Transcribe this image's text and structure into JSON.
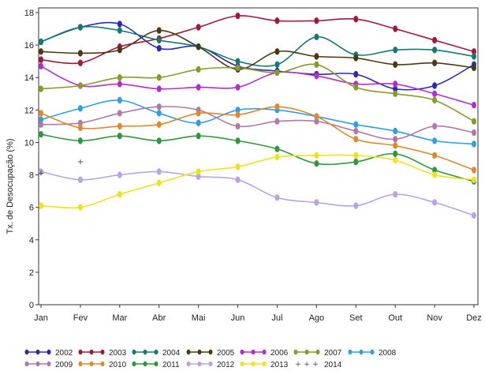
{
  "chart_data": {
    "type": "line",
    "title": "",
    "xlabel": "",
    "ylabel": "Tx. de Desocupação (%)",
    "categories": [
      "Jan",
      "Fev",
      "Mar",
      "Abr",
      "Mai",
      "Jun",
      "Jul",
      "Ago",
      "Set",
      "Out",
      "Nov",
      "Dez"
    ],
    "yticks": [
      0,
      2,
      4,
      6,
      8,
      10,
      12,
      14,
      16,
      18
    ],
    "ylim": [
      0,
      18
    ],
    "grid": false,
    "legend_position": "bottom",
    "series": [
      {
        "name": "2002",
        "color": "#2a2ab8",
        "marker": "diamond",
        "values": [
          16.2,
          17.1,
          17.3,
          15.8,
          15.9,
          14.7,
          14.4,
          14.2,
          14.2,
          13.3,
          13.5,
          14.8
        ]
      },
      {
        "name": "2003",
        "color": "#a3183a",
        "marker": "diamond",
        "values": [
          15.1,
          14.9,
          15.9,
          16.4,
          17.1,
          17.8,
          17.5,
          17.5,
          17.6,
          17.0,
          16.3,
          15.6
        ]
      },
      {
        "name": "2004",
        "color": "#127a6e",
        "marker": "diamond",
        "values": [
          16.2,
          17.1,
          16.9,
          16.3,
          15.9,
          15.0,
          14.8,
          16.5,
          15.4,
          15.7,
          15.7,
          15.3
        ]
      },
      {
        "name": "2005",
        "color": "#4a3a12",
        "marker": "diamond",
        "values": [
          15.6,
          15.5,
          15.7,
          16.9,
          15.9,
          14.5,
          15.6,
          15.3,
          15.2,
          14.8,
          14.9,
          14.6
        ]
      },
      {
        "name": "2006",
        "color": "#b52bd0",
        "marker": "diamond",
        "values": [
          14.7,
          13.5,
          13.6,
          13.3,
          13.4,
          13.4,
          14.3,
          14.1,
          13.6,
          13.6,
          13.0,
          12.3
        ]
      },
      {
        "name": "2007",
        "color": "#8a9a26",
        "marker": "diamond",
        "values": [
          13.3,
          13.5,
          14.0,
          14.0,
          14.5,
          14.6,
          14.3,
          14.8,
          13.4,
          13.0,
          12.6,
          11.3
        ]
      },
      {
        "name": "2008",
        "color": "#2e9ee6",
        "marker": "diamond",
        "values": [
          11.4,
          12.1,
          12.6,
          11.8,
          11.2,
          12.0,
          12.0,
          11.6,
          11.1,
          10.7,
          10.1,
          9.9
        ]
      },
      {
        "name": "2009",
        "color": "#b07aa8",
        "marker": "diamond",
        "values": [
          11.1,
          11.2,
          11.8,
          12.2,
          12.0,
          11.0,
          11.3,
          11.3,
          10.7,
          10.2,
          11.0,
          10.6
        ]
      },
      {
        "name": "2010",
        "color": "#e0892a",
        "marker": "diamond",
        "values": [
          11.8,
          10.9,
          11.0,
          11.1,
          11.8,
          11.7,
          12.2,
          11.6,
          10.2,
          9.8,
          9.2,
          8.3
        ]
      },
      {
        "name": "2011",
        "color": "#2c9a3c",
        "marker": "diamond",
        "values": [
          10.5,
          10.1,
          10.4,
          10.1,
          10.4,
          10.1,
          9.6,
          8.7,
          8.8,
          9.3,
          8.3,
          7.6
        ]
      },
      {
        "name": "2012",
        "color": "#b8a2ea",
        "marker": "diamond",
        "values": [
          8.2,
          7.7,
          8.0,
          8.2,
          7.9,
          7.7,
          6.6,
          6.3,
          6.1,
          6.8,
          6.3,
          5.5
        ]
      },
      {
        "name": "2013",
        "color": "#f0e21a",
        "marker": "diamond",
        "values": [
          6.1,
          6.0,
          6.8,
          7.5,
          8.2,
          8.5,
          9.1,
          9.2,
          9.2,
          8.9,
          8.0,
          7.7
        ]
      },
      {
        "name": "2014",
        "color": "#444444",
        "marker": "plus",
        "values": [
          8.1,
          8.8,
          null,
          null,
          null,
          null,
          null,
          null,
          null,
          null,
          null,
          null
        ]
      }
    ]
  }
}
